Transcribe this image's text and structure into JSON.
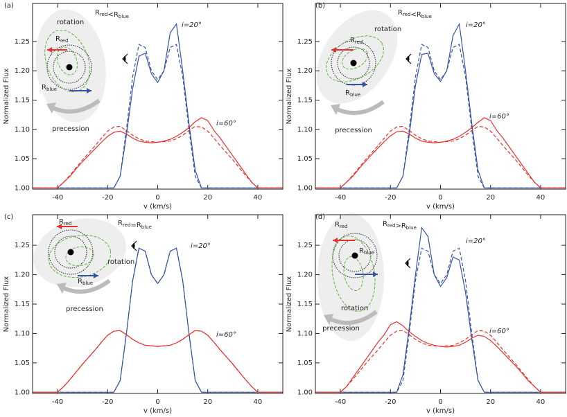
{
  "chart_data": [
    {
      "type": "line",
      "panel_label": "(a)",
      "xlabel": "v (km/s)",
      "ylabel": "Normalized Flux",
      "xlim": [
        -50,
        50
      ],
      "xticks": [
        -40,
        -20,
        0,
        20,
        40
      ],
      "ylim": [
        0.998,
        1.315
      ],
      "yticks": [
        {
          "value": 1,
          "label": "1.00"
        },
        1.05,
        {
          "value": 1.1,
          "label": "1.10"
        },
        1.15,
        {
          "value": 1.2,
          "label": "1.20"
        },
        1.25
      ],
      "x": [
        -50,
        -47.5,
        -45,
        -42.5,
        -40,
        -37.5,
        -35,
        -32.5,
        -30,
        -27.5,
        -25,
        -22.5,
        -20,
        -17.5,
        -15,
        -12.5,
        -10,
        -7.5,
        -5,
        -2.5,
        0,
        2.5,
        5,
        7.5,
        10,
        12.5,
        15,
        17.5,
        20,
        22.5,
        25,
        27.5,
        30,
        32.5,
        35,
        37.5,
        40,
        42.5,
        45,
        47.5,
        50
      ],
      "series": [
        {
          "color": "#3553a4",
          "dash": false,
          "values": [
            1,
            1,
            1,
            1,
            1,
            1,
            1,
            1,
            1,
            1,
            1,
            1,
            1,
            1,
            1.02,
            1.09,
            1.17,
            1.225,
            1.23,
            1.195,
            1.18,
            1.2,
            1.265,
            1.28,
            1.2,
            1.11,
            1.03,
            1,
            1,
            1,
            1,
            1,
            1,
            1,
            1,
            1,
            1,
            1,
            1,
            1,
            1
          ]
        },
        {
          "color": "#3553a4",
          "dash": true,
          "values": [
            1,
            1,
            1,
            1,
            1,
            1,
            1,
            1,
            1,
            1,
            1,
            1,
            1,
            1,
            1.02,
            1.1,
            1.19,
            1.245,
            1.24,
            1.2,
            1.185,
            1.2,
            1.24,
            1.245,
            1.19,
            1.1,
            1.02,
            1,
            1,
            1,
            1,
            1,
            1,
            1,
            1,
            1,
            1,
            1,
            1,
            1,
            1
          ]
        },
        {
          "color": "#e8302f",
          "dash": false,
          "values": [
            1,
            1,
            1,
            1,
            1,
            1.01,
            1.02,
            1.033,
            1.045,
            1.056,
            1.067,
            1.078,
            1.088,
            1.095,
            1.097,
            1.092,
            1.085,
            1.08,
            1.078,
            1.077,
            1.078,
            1.08,
            1.083,
            1.088,
            1.095,
            1.103,
            1.113,
            1.12,
            1.115,
            1.098,
            1.085,
            1.07,
            1.055,
            1.04,
            1.025,
            1.01,
            1,
            1,
            1,
            1,
            1
          ]
        },
        {
          "color": "#e8302f",
          "dash": true,
          "values": [
            1,
            1,
            1,
            1,
            1,
            1.01,
            1.022,
            1.035,
            1.048,
            1.06,
            1.072,
            1.085,
            1.097,
            1.104,
            1.105,
            1.098,
            1.09,
            1.084,
            1.08,
            1.079,
            1.078,
            1.079,
            1.08,
            1.084,
            1.09,
            1.098,
            1.105,
            1.104,
            1.097,
            1.085,
            1.072,
            1.06,
            1.048,
            1.035,
            1.022,
            1.01,
            1,
            1,
            1,
            1,
            1
          ]
        }
      ],
      "annotations": {
        "i20": "i=20°",
        "i60": "i=60°",
        "rotation": "rotation",
        "precession": "precession",
        "r_red": {
          "main": "R",
          "sub": "red"
        },
        "r_blue": {
          "main": "R",
          "sub": "blue"
        },
        "relation": {
          "left": "R",
          "left_sub": "red",
          "op": "<",
          "right": "R",
          "right_sub": "blue"
        }
      }
    },
    {
      "type": "line",
      "panel_label": "(b)",
      "xlabel": "v (km/s)",
      "ylabel": "Normalized Flux",
      "xlim": [
        -50,
        50
      ],
      "xticks": [
        -40,
        -20,
        0,
        20,
        40
      ],
      "ylim": [
        0.998,
        1.315
      ],
      "yticks": [
        {
          "value": 1,
          "label": "1.00"
        },
        1.05,
        {
          "value": 1.1,
          "label": "1.10"
        },
        1.15,
        {
          "value": 1.2,
          "label": "1.20"
        },
        1.25
      ],
      "x": [
        -50,
        -47.5,
        -45,
        -42.5,
        -40,
        -37.5,
        -35,
        -32.5,
        -30,
        -27.5,
        -25,
        -22.5,
        -20,
        -17.5,
        -15,
        -12.5,
        -10,
        -7.5,
        -5,
        -2.5,
        0,
        2.5,
        5,
        7.5,
        10,
        12.5,
        15,
        17.5,
        20,
        22.5,
        25,
        27.5,
        30,
        32.5,
        35,
        37.5,
        40,
        42.5,
        45,
        47.5,
        50
      ],
      "series": [
        {
          "color": "#3553a4",
          "dash": false,
          "values": [
            1,
            1,
            1,
            1,
            1,
            1,
            1,
            1,
            1,
            1,
            1,
            1,
            1,
            1,
            1.02,
            1.09,
            1.175,
            1.228,
            1.23,
            1.195,
            1.182,
            1.2,
            1.26,
            1.28,
            1.2,
            1.11,
            1.03,
            1,
            1,
            1,
            1,
            1,
            1,
            1,
            1,
            1,
            1,
            1,
            1,
            1,
            1
          ]
        },
        {
          "color": "#3553a4",
          "dash": true,
          "values": [
            1,
            1,
            1,
            1,
            1,
            1,
            1,
            1,
            1,
            1,
            1,
            1,
            1,
            1,
            1.02,
            1.1,
            1.19,
            1.245,
            1.24,
            1.2,
            1.185,
            1.2,
            1.24,
            1.245,
            1.19,
            1.1,
            1.02,
            1,
            1,
            1,
            1,
            1,
            1,
            1,
            1,
            1,
            1,
            1,
            1,
            1,
            1
          ]
        },
        {
          "color": "#e8302f",
          "dash": false,
          "values": [
            1,
            1,
            1,
            1,
            1,
            1.01,
            1.02,
            1.033,
            1.045,
            1.057,
            1.068,
            1.079,
            1.089,
            1.096,
            1.097,
            1.092,
            1.085,
            1.08,
            1.078,
            1.077,
            1.078,
            1.08,
            1.083,
            1.088,
            1.095,
            1.103,
            1.112,
            1.12,
            1.115,
            1.098,
            1.085,
            1.07,
            1.055,
            1.04,
            1.025,
            1.01,
            1,
            1,
            1,
            1,
            1
          ]
        },
        {
          "color": "#e8302f",
          "dash": true,
          "values": [
            1,
            1,
            1,
            1,
            1,
            1.01,
            1.022,
            1.035,
            1.048,
            1.06,
            1.072,
            1.085,
            1.097,
            1.104,
            1.105,
            1.098,
            1.09,
            1.084,
            1.08,
            1.079,
            1.078,
            1.079,
            1.08,
            1.084,
            1.09,
            1.098,
            1.105,
            1.104,
            1.097,
            1.085,
            1.072,
            1.06,
            1.048,
            1.035,
            1.022,
            1.01,
            1,
            1,
            1,
            1,
            1
          ]
        }
      ],
      "annotations": {
        "i20": "i=20°",
        "i60": "i=60°",
        "rotation": "rotation",
        "precession": "precession",
        "r_red": {
          "main": "R",
          "sub": "red"
        },
        "r_blue": {
          "main": "R",
          "sub": "blue"
        },
        "relation": {
          "left": "R",
          "left_sub": "red",
          "op": "<",
          "right": "R",
          "right_sub": "blue"
        }
      }
    },
    {
      "type": "line",
      "panel_label": "(c)",
      "xlabel": "v (km/s)",
      "ylabel": "Normalized Flux",
      "xlim": [
        -50,
        50
      ],
      "xticks": [
        -40,
        -20,
        0,
        20,
        40
      ],
      "ylim": [
        0.998,
        1.302
      ],
      "yticks": [
        {
          "value": 1,
          "label": "1.00"
        },
        1.05,
        {
          "value": 1.1,
          "label": "1.10"
        },
        1.15,
        {
          "value": 1.2,
          "label": "1.20"
        },
        1.25
      ],
      "x": [
        -50,
        -47.5,
        -45,
        -42.5,
        -40,
        -37.5,
        -35,
        -32.5,
        -30,
        -27.5,
        -25,
        -22.5,
        -20,
        -17.5,
        -15,
        -12.5,
        -10,
        -7.5,
        -5,
        -2.5,
        0,
        2.5,
        5,
        7.5,
        10,
        12.5,
        15,
        17.5,
        20,
        22.5,
        25,
        27.5,
        30,
        32.5,
        35,
        37.5,
        40,
        42.5,
        45,
        47.5,
        50
      ],
      "series": [
        {
          "color": "#3553a4",
          "dash": false,
          "values": [
            1,
            1,
            1,
            1,
            1,
            1,
            1,
            1,
            1,
            1,
            1,
            1,
            1,
            1,
            1.02,
            1.1,
            1.19,
            1.245,
            1.24,
            1.2,
            1.185,
            1.2,
            1.24,
            1.245,
            1.19,
            1.1,
            1.02,
            1,
            1,
            1,
            1,
            1,
            1,
            1,
            1,
            1,
            1,
            1,
            1,
            1,
            1
          ]
        },
        {
          "color": "#3553a4",
          "dash": true,
          "values": [
            1,
            1,
            1,
            1,
            1,
            1,
            1,
            1,
            1,
            1,
            1,
            1,
            1,
            1,
            1.02,
            1.1,
            1.19,
            1.245,
            1.24,
            1.2,
            1.185,
            1.2,
            1.24,
            1.245,
            1.19,
            1.1,
            1.02,
            1,
            1,
            1,
            1,
            1,
            1,
            1,
            1,
            1,
            1,
            1,
            1,
            1,
            1
          ]
        },
        {
          "color": "#e8302f",
          "dash": false,
          "values": [
            1,
            1,
            1,
            1,
            1,
            1.01,
            1.022,
            1.035,
            1.048,
            1.06,
            1.072,
            1.085,
            1.097,
            1.104,
            1.105,
            1.098,
            1.09,
            1.084,
            1.08,
            1.079,
            1.078,
            1.079,
            1.08,
            1.084,
            1.09,
            1.098,
            1.105,
            1.104,
            1.097,
            1.085,
            1.072,
            1.06,
            1.048,
            1.035,
            1.022,
            1.01,
            1,
            1,
            1,
            1,
            1
          ]
        },
        {
          "color": "#e8302f",
          "dash": true,
          "values": [
            1,
            1,
            1,
            1,
            1,
            1.01,
            1.022,
            1.035,
            1.048,
            1.06,
            1.072,
            1.085,
            1.097,
            1.104,
            1.105,
            1.098,
            1.09,
            1.084,
            1.08,
            1.079,
            1.078,
            1.079,
            1.08,
            1.084,
            1.09,
            1.098,
            1.105,
            1.104,
            1.097,
            1.085,
            1.072,
            1.06,
            1.048,
            1.035,
            1.022,
            1.01,
            1,
            1,
            1,
            1,
            1
          ]
        }
      ],
      "annotations": {
        "i20": "i=20°",
        "i60": "i=60°",
        "rotation": "rotation",
        "precession": "precession",
        "r_red": {
          "main": "R",
          "sub": "red"
        },
        "r_blue": {
          "main": "R",
          "sub": "blue"
        },
        "relation": {
          "left": "R",
          "left_sub": "red",
          "op": "=",
          "right": "R",
          "right_sub": "blue"
        }
      }
    },
    {
      "type": "line",
      "panel_label": "(d)",
      "xlabel": "v (km/s)",
      "ylabel": "Normalized Flux",
      "xlim": [
        -50,
        50
      ],
      "xticks": [
        -40,
        -20,
        0,
        20,
        40
      ],
      "ylim": [
        0.998,
        1.302
      ],
      "yticks": [
        {
          "value": 1,
          "label": "1.00"
        },
        1.05,
        {
          "value": 1.1,
          "label": "1.10"
        },
        1.15,
        {
          "value": 1.2,
          "label": "1.20"
        },
        1.25
      ],
      "x": [
        -50,
        -47.5,
        -45,
        -42.5,
        -40,
        -37.5,
        -35,
        -32.5,
        -30,
        -27.5,
        -25,
        -22.5,
        -20,
        -17.5,
        -15,
        -12.5,
        -10,
        -7.5,
        -5,
        -2.5,
        0,
        2.5,
        5,
        7.5,
        10,
        12.5,
        15,
        17.5,
        20,
        22.5,
        25,
        27.5,
        30,
        32.5,
        35,
        37.5,
        40,
        42.5,
        45,
        47.5,
        50
      ],
      "series": [
        {
          "color": "#3553a4",
          "dash": false,
          "values": [
            1,
            1,
            1,
            1,
            1,
            1,
            1,
            1,
            1,
            1,
            1,
            1,
            1,
            1,
            1.03,
            1.11,
            1.2,
            1.28,
            1.265,
            1.2,
            1.18,
            1.195,
            1.23,
            1.225,
            1.17,
            1.09,
            1.02,
            1,
            1,
            1,
            1,
            1,
            1,
            1,
            1,
            1,
            1,
            1,
            1,
            1,
            1
          ]
        },
        {
          "color": "#3553a4",
          "dash": true,
          "values": [
            1,
            1,
            1,
            1,
            1,
            1,
            1,
            1,
            1,
            1,
            1,
            1,
            1,
            1,
            1.02,
            1.1,
            1.19,
            1.245,
            1.24,
            1.2,
            1.185,
            1.2,
            1.24,
            1.245,
            1.19,
            1.1,
            1.02,
            1,
            1,
            1,
            1,
            1,
            1,
            1,
            1,
            1,
            1,
            1,
            1,
            1,
            1
          ]
        },
        {
          "color": "#e8302f",
          "dash": false,
          "values": [
            1,
            1,
            1,
            1,
            1,
            1.01,
            1.025,
            1.04,
            1.055,
            1.07,
            1.085,
            1.098,
            1.115,
            1.12,
            1.113,
            1.103,
            1.095,
            1.088,
            1.083,
            1.08,
            1.078,
            1.077,
            1.078,
            1.08,
            1.085,
            1.092,
            1.097,
            1.095,
            1.088,
            1.078,
            1.067,
            1.056,
            1.045,
            1.033,
            1.02,
            1.01,
            1,
            1,
            1,
            1,
            1
          ]
        },
        {
          "color": "#e8302f",
          "dash": true,
          "values": [
            1,
            1,
            1,
            1,
            1,
            1.01,
            1.022,
            1.035,
            1.048,
            1.06,
            1.072,
            1.085,
            1.097,
            1.104,
            1.105,
            1.098,
            1.09,
            1.084,
            1.08,
            1.079,
            1.078,
            1.079,
            1.08,
            1.084,
            1.09,
            1.098,
            1.105,
            1.104,
            1.097,
            1.085,
            1.072,
            1.06,
            1.048,
            1.035,
            1.022,
            1.01,
            1,
            1,
            1,
            1,
            1
          ]
        }
      ],
      "annotations": {
        "i20": "i=20°",
        "i60": "i=60°",
        "rotation": "rotation",
        "precession": "precession",
        "r_red": {
          "main": "R",
          "sub": "red"
        },
        "r_blue": {
          "main": "R",
          "sub": "blue"
        },
        "relation": {
          "left": "R",
          "left_sub": "red",
          "op": ">",
          "right": "R",
          "right_sub": "blue"
        }
      }
    }
  ]
}
